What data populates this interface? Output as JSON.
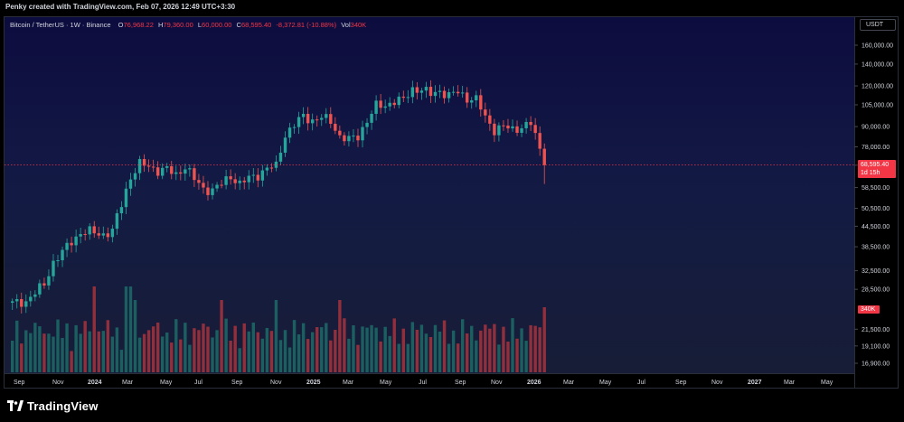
{
  "header": {
    "credit": "Penky created with TradingView.com, Feb 07, 2026 12:49 UTC+3:30"
  },
  "legend": {
    "symbol": "Bitcoin / TetherUS · 1W · Binance",
    "open_key": "O",
    "open": "76,968.22",
    "high_key": "H",
    "high": "79,360.00",
    "low_key": "L",
    "low": "60,000.00",
    "close_key": "C",
    "close": "68,595.40",
    "change": "-8,372.81 (-10.88%)",
    "vol_key": "Vol",
    "vol": "340K"
  },
  "currency": "USDT",
  "price_tag": {
    "price": "68,595.40",
    "countdown": "1d 15h"
  },
  "volume_tag": "340K",
  "footer": {
    "brand": "TradingView"
  },
  "colors": {
    "up": "#26a69a",
    "down": "#ef5350",
    "vol_up": "#1c6b69",
    "vol_down": "#a8323d",
    "text": "#d1d4dc"
  },
  "chart_data": {
    "type": "candlestick",
    "interval": "1W",
    "log_scale": true,
    "y_ticks": [
      "160,000.00",
      "140,000.00",
      "120,000.00",
      "105,000.00",
      "90,000.00",
      "78,000.00",
      "68,500.00",
      "58,500.00",
      "50,500.00",
      "44,500.00",
      "38,500.00",
      "32,500.00",
      "28,500.00",
      "21,500.00",
      "19,100.00",
      "16,900.00"
    ],
    "x_ticks": [
      "Sep",
      "Nov",
      "2024",
      "Mar",
      "May",
      "Jul",
      "Sep",
      "Nov",
      "2025",
      "Mar",
      "May",
      "Jul",
      "Sep",
      "Nov",
      "2026",
      "Mar",
      "May",
      "Jul",
      "Sep",
      "Nov",
      "2027",
      "Mar",
      "May"
    ],
    "last_price": 68595.4,
    "anchors": [
      [
        0,
        25800
      ],
      [
        3,
        26200
      ],
      [
        5,
        27800
      ],
      [
        7,
        29500
      ],
      [
        9,
        34500
      ],
      [
        11,
        37000
      ],
      [
        13,
        40000
      ],
      [
        15,
        42500
      ],
      [
        17,
        42800
      ],
      [
        20,
        42000
      ],
      [
        22,
        43000
      ],
      [
        24,
        52000
      ],
      [
        26,
        63000
      ],
      [
        28,
        69000
      ],
      [
        30,
        68000
      ],
      [
        32,
        66000
      ],
      [
        34,
        66500
      ],
      [
        36,
        64000
      ],
      [
        38,
        68000
      ],
      [
        40,
        62000
      ],
      [
        42,
        58000
      ],
      [
        44,
        57500
      ],
      [
        46,
        60000
      ],
      [
        48,
        63500
      ],
      [
        50,
        60000
      ],
      [
        52,
        62500
      ],
      [
        54,
        64000
      ],
      [
        56,
        67000
      ],
      [
        58,
        68000
      ],
      [
        60,
        85000
      ],
      [
        62,
        91000
      ],
      [
        64,
        97000
      ],
      [
        66,
        94000
      ],
      [
        68,
        96000
      ],
      [
        70,
        93500
      ],
      [
        72,
        84000
      ],
      [
        74,
        82000
      ],
      [
        76,
        84000
      ],
      [
        78,
        94000
      ],
      [
        80,
        104000
      ],
      [
        82,
        104500
      ],
      [
        84,
        108000
      ],
      [
        86,
        108500
      ],
      [
        88,
        117500
      ],
      [
        90,
        117000
      ],
      [
        92,
        113000
      ],
      [
        94,
        116000
      ],
      [
        96,
        112000
      ],
      [
        98,
        115000
      ],
      [
        100,
        110000
      ],
      [
        102,
        109000
      ],
      [
        104,
        96000
      ],
      [
        106,
        88000
      ],
      [
        108,
        90000
      ],
      [
        110,
        88000
      ],
      [
        112,
        90000
      ],
      [
        114,
        92000
      ],
      [
        115,
        84000
      ],
      [
        116,
        76968.22
      ],
      [
        117,
        68595.4
      ]
    ]
  }
}
